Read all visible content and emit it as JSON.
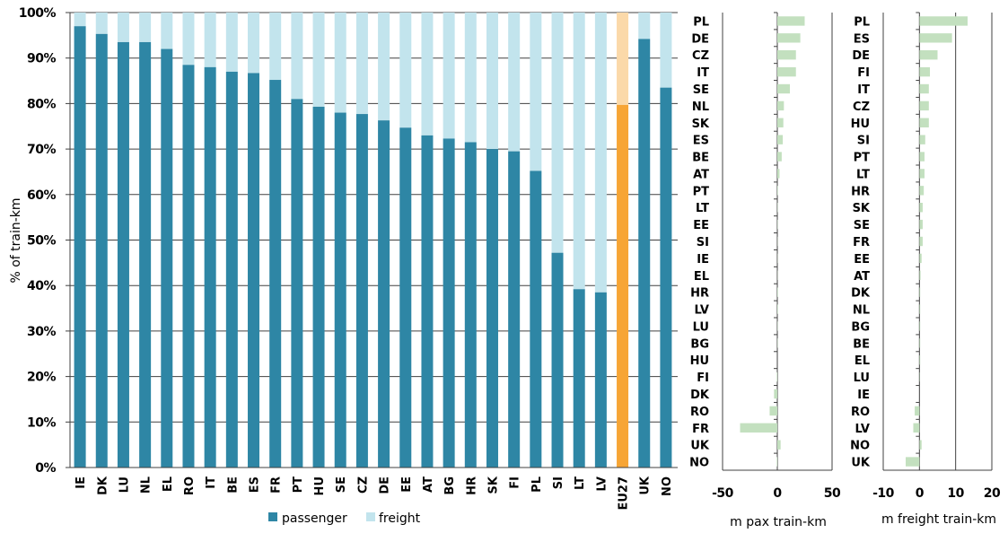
{
  "colors": {
    "passenger": "#2e86a5",
    "freight": "#c2e4ed",
    "eu_passenger": "#f7a535",
    "eu_freight": "#fbd9a9",
    "small_bars": "#c3e0bf",
    "grid": "#404040"
  },
  "chart_data": [
    {
      "type": "bar",
      "stacked": true,
      "orientation": "vertical",
      "ylabel": "% of train-km",
      "ylim": [
        0,
        100
      ],
      "yticks": [
        "0%",
        "10%",
        "20%",
        "30%",
        "40%",
        "50%",
        "60%",
        "70%",
        "80%",
        "90%",
        "100%"
      ],
      "grid": true,
      "legend": "bottom",
      "categories": [
        "IE",
        "DK",
        "LU",
        "NL",
        "EL",
        "RO",
        "IT",
        "BE",
        "ES",
        "FR",
        "PT",
        "HU",
        "SE",
        "CZ",
        "DE",
        "EE",
        "AT",
        "BG",
        "HR",
        "SK",
        "FI",
        "PL",
        "SI",
        "LT",
        "LV",
        "EU27",
        "UK",
        "NO"
      ],
      "highlight": "EU27",
      "series": [
        {
          "name": "passenger",
          "values": [
            97.0,
            95.3,
            93.5,
            93.5,
            92.0,
            88.5,
            88.0,
            87.0,
            86.7,
            85.2,
            81.0,
            79.3,
            78.0,
            77.7,
            76.3,
            74.7,
            73.0,
            72.3,
            71.5,
            70.0,
            69.5,
            65.2,
            47.2,
            39.2,
            38.5,
            79.7,
            94.2,
            83.5
          ]
        },
        {
          "name": "freight",
          "values": [
            3.0,
            4.7,
            6.5,
            6.5,
            8.0,
            11.5,
            12.0,
            13.0,
            13.3,
            14.8,
            19.0,
            20.7,
            22.0,
            22.3,
            23.7,
            25.3,
            27.0,
            27.7,
            28.5,
            30.0,
            30.5,
            34.8,
            52.8,
            60.8,
            61.5,
            20.3,
            5.8,
            16.5
          ]
        }
      ]
    },
    {
      "type": "bar",
      "orientation": "horizontal",
      "xlabel": "m pax train-km",
      "xlim": [
        -50,
        50
      ],
      "xticks": [
        "-50",
        "0",
        "50"
      ],
      "categories": [
        "PL",
        "DE",
        "CZ",
        "IT",
        "SE",
        "NL",
        "SK",
        "ES",
        "BE",
        "AT",
        "PT",
        "LT",
        "EE",
        "SI",
        "IE",
        "EL",
        "HR",
        "LV",
        "LU",
        "BG",
        "HU",
        "FI",
        "DK",
        "RO",
        "FR",
        "UK",
        "NO"
      ],
      "values": [
        25,
        21,
        17,
        17,
        11.5,
        6,
        5.5,
        5,
        4,
        2,
        0.5,
        0.3,
        0.3,
        0.2,
        0.2,
        0.2,
        0.5,
        0.5,
        0.3,
        0.3,
        0,
        -0.5,
        -3,
        -7,
        -34,
        3,
        -0.5
      ]
    },
    {
      "type": "bar",
      "orientation": "horizontal",
      "xlabel": "m freight train-km",
      "xlim": [
        -10,
        20
      ],
      "xticks": [
        "-10",
        "0",
        "10",
        "20"
      ],
      "categories": [
        "PL",
        "ES",
        "DE",
        "FI",
        "IT",
        "CZ",
        "HU",
        "SI",
        "PT",
        "LT",
        "HR",
        "SK",
        "SE",
        "FR",
        "EE",
        "AT",
        "DK",
        "NL",
        "BG",
        "BE",
        "EL",
        "LU",
        "IE",
        "RO",
        "LV",
        "NO",
        "UK"
      ],
      "values": [
        13.3,
        9.0,
        5.0,
        2.9,
        2.6,
        2.6,
        2.6,
        1.6,
        1.4,
        1.4,
        1.2,
        0.9,
        0.9,
        0.9,
        0.6,
        0.3,
        0.2,
        0.2,
        0.2,
        0.2,
        0.2,
        0.1,
        0,
        -1.3,
        -1.7,
        0.6,
        -3.8
      ]
    }
  ]
}
